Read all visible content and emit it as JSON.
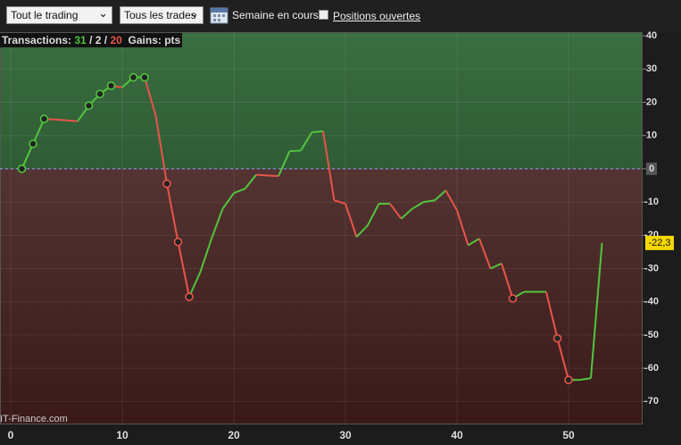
{
  "toolbar": {
    "scope": "Tout le trading",
    "trades": "Tous les trades",
    "period": "Semaine en cours",
    "open_positions": "Positions ouvertes"
  },
  "summary": {
    "label": "Transactions:",
    "wins": 31,
    "neutral": 2,
    "losses": 20,
    "separator": "/",
    "gains_label": "Gains:",
    "unit": "pts"
  },
  "watermark": "IT-Finance.com",
  "chart_data": {
    "type": "line",
    "series": [
      {
        "name": "Gains",
        "up_color": "#52c43f",
        "down_color": "#e8544b",
        "x": [
          1,
          2,
          3,
          4,
          5,
          6,
          7,
          8,
          9,
          10,
          11,
          12,
          13,
          14,
          15,
          16,
          17,
          18,
          19,
          20,
          21,
          22,
          23,
          24,
          25,
          26,
          27,
          28,
          29,
          30,
          31,
          32,
          33,
          34,
          35,
          36,
          37,
          38,
          39,
          40,
          41,
          42,
          43,
          44,
          45,
          46,
          47,
          48,
          49,
          50,
          51,
          52,
          53
        ],
        "values": [
          0,
          7.5,
          15,
          14.8,
          14.6,
          14.3,
          19,
          22.5,
          25,
          24.5,
          27.5,
          27.5,
          16,
          -4.5,
          -22,
          -38.5,
          -31,
          -21,
          -12,
          -7.3,
          -6,
          -1.8,
          -2,
          -2.2,
          5.3,
          5.5,
          11,
          11.3,
          -9.5,
          -10.5,
          -20.5,
          -17,
          -10.5,
          -10.5,
          -15,
          -12,
          -10,
          -9.5,
          -6.5,
          -12.5,
          -23,
          -21,
          -30,
          -28.5,
          -39,
          -37,
          -37,
          -37,
          -51,
          -63.5,
          -63.5,
          -63,
          -22.3
        ]
      }
    ],
    "markers": [
      1,
      2,
      3,
      7,
      8,
      9,
      11,
      12,
      14,
      15,
      16,
      45,
      49,
      50
    ],
    "last_value_label": "-22,3",
    "xlim": [
      -0.96,
      56.64
    ],
    "xticks": [
      0,
      10,
      20,
      30,
      40,
      50
    ],
    "ylim": [
      -76.9,
      41.1
    ],
    "yticks": [
      40,
      30,
      20,
      10,
      0,
      -10,
      -20,
      -30,
      -40,
      -50,
      -60,
      -70
    ],
    "grid": true
  }
}
